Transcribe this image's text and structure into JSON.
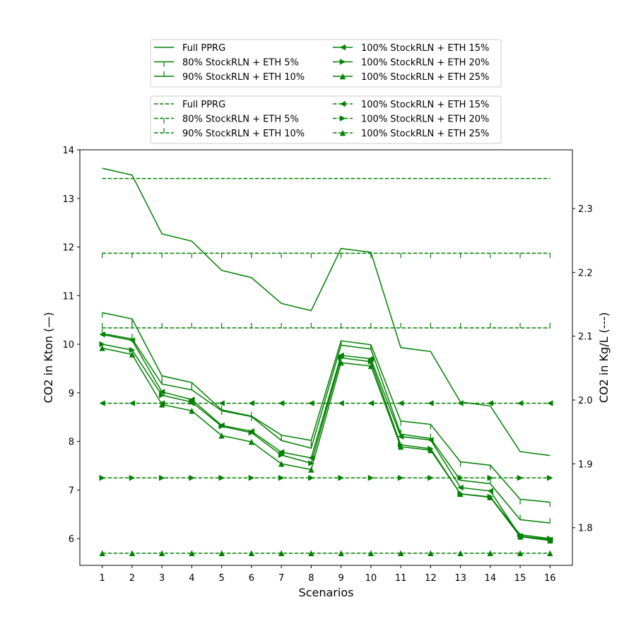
{
  "chart_data": {
    "type": "line",
    "xlabel": "Scenarios",
    "ylabel_left": "CO2 in Kton (—)",
    "ylabel_right": "CO2 in Kg/L (---)",
    "x": [
      1,
      2,
      3,
      4,
      5,
      6,
      7,
      8,
      9,
      10,
      11,
      12,
      13,
      14,
      15,
      16
    ],
    "xlim": [
      0.25,
      16.75
    ],
    "ylim_left": [
      5.45,
      14.0
    ],
    "ylim_right": [
      1.741,
      2.392
    ],
    "left_ticks": [
      6,
      7,
      8,
      9,
      10,
      11,
      12,
      13,
      14
    ],
    "right_ticks": [
      1.8,
      1.9,
      2.0,
      2.1,
      2.2,
      2.3
    ],
    "grid": false,
    "color": "#008000",
    "legend_solid": {
      "placement": "top-center",
      "entries": [
        "Full PPRG",
        "80% StockRLN + ETH 5%",
        "90% StockRLN + ETH 10%",
        "100% StockRLN + ETH 15%",
        "100% StockRLN + ETH 20%",
        "100% StockRLN + ETH 25%"
      ]
    },
    "legend_dashed": {
      "placement": "top-center",
      "entries": [
        "Full PPRG",
        "80% StockRLN + ETH 5%",
        "90% StockRLN + ETH 10%",
        "100% StockRLN + ETH 15%",
        "100% StockRLN + ETH 20%",
        "100% StockRLN + ETH 25%"
      ]
    },
    "series_left": [
      {
        "name": "Full PPRG",
        "marker": "none",
        "values": [
          13.62,
          13.48,
          12.27,
          12.12,
          11.52,
          11.37,
          10.84,
          10.69,
          11.97,
          11.89,
          9.93,
          9.85,
          8.81,
          8.73,
          7.79,
          7.71
        ]
      },
      {
        "name": "80% StockRLN + ETH 5%",
        "marker": "tick_down",
        "values": [
          10.65,
          10.52,
          9.35,
          9.21,
          8.65,
          8.52,
          8.13,
          8.02,
          10.07,
          9.99,
          8.42,
          8.35,
          7.58,
          7.51,
          6.81,
          6.75
        ]
      },
      {
        "name": "90% StockRLN + ETH 10%",
        "marker": "tick_up",
        "values": [
          10.22,
          10.11,
          9.18,
          9.06,
          8.63,
          8.51,
          8.02,
          7.86,
          9.98,
          9.9,
          8.15,
          8.06,
          7.2,
          7.13,
          6.39,
          6.32
        ]
      },
      {
        "name": "100% StockRLN + ETH 15%",
        "marker": "triangle_left",
        "values": [
          10.2,
          10.08,
          9.02,
          8.86,
          8.33,
          8.21,
          7.78,
          7.66,
          9.77,
          9.7,
          8.1,
          8.03,
          7.05,
          6.98,
          6.05,
          5.98
        ]
      },
      {
        "name": "100% StockRLN + ETH 20%",
        "marker": "triangle_right",
        "values": [
          10.0,
          9.88,
          8.95,
          8.81,
          8.31,
          8.18,
          7.72,
          7.55,
          9.72,
          9.64,
          7.93,
          7.85,
          6.92,
          6.86,
          6.08,
          6.0
        ]
      },
      {
        "name": "100% StockRLN + ETH 25%",
        "marker": "triangle_up",
        "values": [
          9.92,
          9.79,
          8.76,
          8.63,
          8.12,
          7.99,
          7.54,
          7.42,
          9.62,
          9.55,
          7.89,
          7.82,
          6.92,
          6.85,
          6.04,
          5.96
        ]
      }
    ],
    "series_right": [
      {
        "name": "Full PPRG",
        "marker": "none",
        "value": 2.347
      },
      {
        "name": "80% StockRLN + ETH 5%",
        "marker": "tick_down",
        "value": 2.23
      },
      {
        "name": "90% StockRLN + ETH 10%",
        "marker": "tick_up",
        "value": 2.113
      },
      {
        "name": "100% StockRLN + ETH 15%",
        "marker": "triangle_left",
        "value": 1.995
      },
      {
        "name": "100% StockRLN + ETH 20%",
        "marker": "triangle_right",
        "value": 1.878
      },
      {
        "name": "100% StockRLN + ETH 25%",
        "marker": "triangle_up",
        "value": 1.76
      }
    ]
  }
}
